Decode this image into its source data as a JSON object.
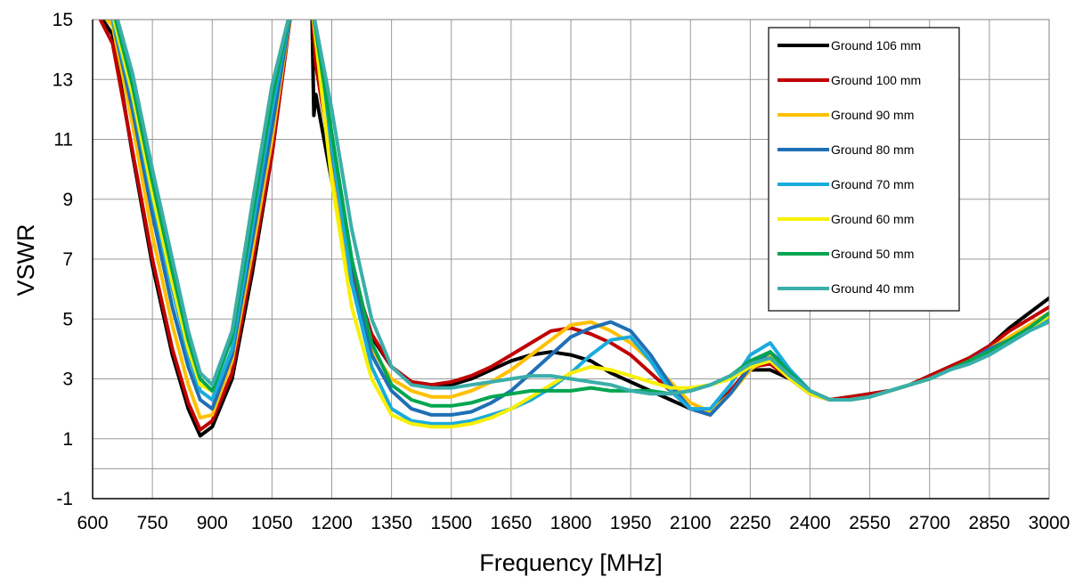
{
  "chart_data": {
    "type": "line",
    "xlabel": "Frequency [MHz]",
    "ylabel": "VSWR",
    "xlim": [
      600,
      3000
    ],
    "ylim": [
      -1,
      15
    ],
    "xticks": [
      600,
      750,
      900,
      1050,
      1200,
      1350,
      1500,
      1650,
      1800,
      1950,
      2100,
      2250,
      2400,
      2550,
      2700,
      2850,
      3000
    ],
    "yticks": [
      -1,
      1,
      3,
      5,
      7,
      9,
      11,
      13,
      15
    ],
    "grid": true,
    "legend_position": "top-right",
    "series": [
      {
        "name": "Ground 106 mm",
        "color": "#000000",
        "x": [
          600,
          650,
          700,
          750,
          800,
          840,
          870,
          900,
          950,
          1000,
          1050,
          1100,
          1150,
          1155,
          1160,
          1200,
          1250,
          1300,
          1350,
          1400,
          1450,
          1500,
          1550,
          1600,
          1650,
          1700,
          1750,
          1800,
          1850,
          1900,
          1950,
          2000,
          2050,
          2100,
          2150,
          2200,
          2250,
          2300,
          2350,
          2400,
          2450,
          2500,
          2550,
          2600,
          2650,
          2700,
          2750,
          2800,
          2850,
          2900,
          2950,
          3000
        ],
        "y": [
          15.5,
          14.5,
          10.5,
          6.8,
          3.8,
          2.0,
          1.1,
          1.4,
          3.0,
          6.5,
          10.5,
          15.5,
          15.5,
          11.8,
          12.5,
          9.6,
          6.2,
          4.4,
          3.4,
          2.9,
          2.8,
          2.8,
          3.0,
          3.3,
          3.6,
          3.8,
          3.9,
          3.8,
          3.6,
          3.2,
          2.9,
          2.6,
          2.3,
          2.0,
          1.9,
          2.6,
          3.3,
          3.3,
          3.0,
          2.5,
          2.3,
          2.4,
          2.5,
          2.6,
          2.8,
          3.1,
          3.4,
          3.7,
          4.1,
          4.7,
          5.2,
          5.7
        ]
      },
      {
        "name": "Ground 100 mm",
        "color": "#c00000",
        "x": [
          600,
          650,
          700,
          750,
          800,
          840,
          870,
          900,
          950,
          1000,
          1050,
          1100,
          1150,
          1160,
          1200,
          1250,
          1300,
          1350,
          1400,
          1450,
          1500,
          1550,
          1600,
          1650,
          1700,
          1750,
          1800,
          1850,
          1900,
          1950,
          2000,
          2050,
          2100,
          2150,
          2200,
          2250,
          2300,
          2350,
          2400,
          2450,
          2500,
          2550,
          2600,
          2650,
          2700,
          2750,
          2800,
          2850,
          2900,
          2950,
          3000
        ],
        "y": [
          15.5,
          14.2,
          10.6,
          7.0,
          4.0,
          2.2,
          1.3,
          1.6,
          3.2,
          6.8,
          10.5,
          15.5,
          15.5,
          13.5,
          10.2,
          6.6,
          4.5,
          3.4,
          2.9,
          2.8,
          2.9,
          3.1,
          3.4,
          3.8,
          4.2,
          4.6,
          4.7,
          4.5,
          4.2,
          3.8,
          3.2,
          2.6,
          2.0,
          1.8,
          2.6,
          3.4,
          3.5,
          3.0,
          2.5,
          2.3,
          2.4,
          2.5,
          2.6,
          2.8,
          3.1,
          3.4,
          3.7,
          4.1,
          4.6,
          5.0,
          5.4
        ]
      },
      {
        "name": "Ground 90 mm",
        "color": "#ffc000",
        "x": [
          600,
          650,
          700,
          750,
          800,
          840,
          870,
          900,
          950,
          1000,
          1050,
          1100,
          1150,
          1200,
          1250,
          1300,
          1350,
          1400,
          1450,
          1500,
          1550,
          1600,
          1650,
          1700,
          1750,
          1800,
          1850,
          1900,
          1950,
          2000,
          2050,
          2100,
          2150,
          2200,
          2250,
          2300,
          2350,
          2400,
          2450,
          2500,
          2550,
          2600,
          2650,
          2700,
          2750,
          2800,
          2850,
          2900,
          2950,
          3000
        ],
        "y": [
          15.5,
          14.8,
          11.5,
          7.8,
          4.8,
          2.8,
          1.7,
          1.8,
          3.6,
          7.2,
          11.0,
          15.5,
          15.5,
          10.0,
          6.2,
          4.0,
          3.0,
          2.6,
          2.4,
          2.4,
          2.6,
          2.9,
          3.3,
          3.8,
          4.3,
          4.8,
          4.9,
          4.6,
          4.2,
          3.6,
          2.9,
          2.2,
          1.9,
          2.5,
          3.3,
          3.8,
          3.2,
          2.6,
          2.3,
          2.3,
          2.4,
          2.6,
          2.8,
          3.0,
          3.3,
          3.6,
          4.0,
          4.4,
          4.8,
          5.2
        ]
      },
      {
        "name": "Ground 80 mm",
        "color": "#1f6fb5",
        "x": [
          600,
          650,
          700,
          750,
          800,
          840,
          870,
          900,
          950,
          1000,
          1050,
          1100,
          1150,
          1200,
          1250,
          1300,
          1350,
          1400,
          1450,
          1500,
          1550,
          1600,
          1650,
          1700,
          1750,
          1800,
          1850,
          1900,
          1950,
          2000,
          2050,
          2100,
          2150,
          2200,
          2250,
          2300,
          2350,
          2400,
          2450,
          2500,
          2550,
          2600,
          2650,
          2700,
          2750,
          2800,
          2850,
          2900,
          2950,
          3000
        ],
        "y": [
          15.5,
          15.0,
          12.0,
          8.5,
          5.4,
          3.4,
          2.3,
          2.0,
          3.8,
          7.6,
          11.4,
          15.5,
          15.5,
          10.6,
          6.4,
          3.8,
          2.6,
          2.0,
          1.8,
          1.8,
          1.9,
          2.2,
          2.6,
          3.2,
          3.8,
          4.4,
          4.7,
          4.9,
          4.6,
          3.8,
          2.8,
          2.0,
          1.8,
          2.5,
          3.4,
          3.9,
          3.3,
          2.6,
          2.3,
          2.3,
          2.4,
          2.6,
          2.8,
          3.0,
          3.3,
          3.6,
          4.0,
          4.3,
          4.7,
          5.0
        ]
      },
      {
        "name": "Ground 70 mm",
        "color": "#1aabdc",
        "x": [
          600,
          650,
          700,
          750,
          800,
          840,
          870,
          900,
          950,
          1000,
          1050,
          1100,
          1150,
          1200,
          1250,
          1300,
          1350,
          1400,
          1450,
          1500,
          1550,
          1600,
          1650,
          1700,
          1750,
          1800,
          1850,
          1900,
          1950,
          2000,
          2050,
          2100,
          2150,
          2200,
          2250,
          2300,
          2350,
          2400,
          2450,
          2500,
          2550,
          2600,
          2650,
          2700,
          2750,
          2800,
          2850,
          2900,
          2950,
          3000
        ],
        "y": [
          15.5,
          15.0,
          12.4,
          9.0,
          6.0,
          3.8,
          2.6,
          2.3,
          4.0,
          8.0,
          12.0,
          15.5,
          15.5,
          10.8,
          6.2,
          3.4,
          2.0,
          1.6,
          1.5,
          1.5,
          1.6,
          1.8,
          2.0,
          2.3,
          2.7,
          3.2,
          3.8,
          4.3,
          4.4,
          3.6,
          2.6,
          2.0,
          2.0,
          2.8,
          3.8,
          4.2,
          3.3,
          2.6,
          2.3,
          2.3,
          2.4,
          2.6,
          2.8,
          3.0,
          3.3,
          3.6,
          3.9,
          4.2,
          4.6,
          5.0
        ]
      },
      {
        "name": "Ground 60 mm",
        "color": "#f7f000",
        "x": [
          600,
          650,
          700,
          750,
          800,
          840,
          870,
          900,
          950,
          1000,
          1050,
          1100,
          1150,
          1200,
          1250,
          1300,
          1350,
          1400,
          1450,
          1500,
          1550,
          1600,
          1650,
          1700,
          1750,
          1800,
          1850,
          1900,
          1950,
          2000,
          2050,
          2100,
          2150,
          2200,
          2250,
          2300,
          2350,
          2400,
          2450,
          2500,
          2550,
          2600,
          2650,
          2700,
          2750,
          2800,
          2850,
          2900,
          2950,
          3000
        ],
        "y": [
          15.5,
          15.2,
          12.5,
          9.2,
          6.2,
          4.0,
          2.8,
          2.6,
          4.6,
          8.8,
          12.8,
          15.5,
          15.5,
          9.6,
          5.4,
          3.0,
          1.8,
          1.5,
          1.4,
          1.4,
          1.5,
          1.7,
          2.0,
          2.4,
          2.8,
          3.2,
          3.4,
          3.3,
          3.1,
          2.9,
          2.7,
          2.7,
          2.8,
          3.0,
          3.4,
          3.6,
          3.0,
          2.5,
          2.3,
          2.3,
          2.4,
          2.6,
          2.8,
          3.0,
          3.3,
          3.6,
          3.9,
          4.3,
          4.7,
          5.1
        ]
      },
      {
        "name": "Ground 50 mm",
        "color": "#00a550",
        "x": [
          600,
          650,
          700,
          750,
          800,
          840,
          870,
          900,
          950,
          1000,
          1050,
          1100,
          1150,
          1200,
          1250,
          1300,
          1350,
          1400,
          1450,
          1500,
          1550,
          1600,
          1650,
          1700,
          1750,
          1800,
          1850,
          1900,
          1950,
          2000,
          2050,
          2100,
          2150,
          2200,
          2250,
          2300,
          2350,
          2400,
          2450,
          2500,
          2550,
          2600,
          2650,
          2700,
          2750,
          2800,
          2850,
          2900,
          2950,
          3000
        ],
        "y": [
          15.5,
          15.4,
          12.8,
          9.6,
          6.6,
          4.3,
          3.0,
          2.6,
          4.4,
          8.4,
          12.4,
          15.5,
          15.5,
          11.2,
          7.0,
          4.2,
          2.8,
          2.3,
          2.1,
          2.1,
          2.2,
          2.4,
          2.5,
          2.6,
          2.6,
          2.6,
          2.7,
          2.6,
          2.6,
          2.6,
          2.5,
          2.6,
          2.8,
          3.1,
          3.6,
          3.9,
          3.2,
          2.6,
          2.3,
          2.3,
          2.4,
          2.6,
          2.8,
          3.0,
          3.3,
          3.6,
          3.9,
          4.3,
          4.7,
          5.2
        ]
      },
      {
        "name": "Ground 40 mm",
        "color": "#3aaeaa",
        "x": [
          600,
          650,
          700,
          750,
          800,
          840,
          870,
          900,
          950,
          1000,
          1050,
          1100,
          1150,
          1200,
          1250,
          1300,
          1350,
          1400,
          1450,
          1500,
          1550,
          1600,
          1650,
          1700,
          1750,
          1800,
          1850,
          1900,
          1950,
          2000,
          2050,
          2100,
          2150,
          2200,
          2250,
          2300,
          2350,
          2400,
          2450,
          2500,
          2550,
          2600,
          2650,
          2700,
          2750,
          2800,
          2850,
          2900,
          2950,
          3000
        ],
        "y": [
          15.5,
          15.6,
          13.2,
          10.0,
          7.0,
          4.6,
          3.2,
          2.8,
          4.6,
          8.8,
          12.8,
          15.5,
          15.5,
          12.0,
          8.0,
          5.0,
          3.4,
          2.8,
          2.7,
          2.7,
          2.8,
          2.9,
          3.0,
          3.1,
          3.1,
          3.0,
          2.9,
          2.8,
          2.6,
          2.5,
          2.5,
          2.6,
          2.8,
          3.1,
          3.5,
          3.7,
          3.1,
          2.6,
          2.3,
          2.3,
          2.4,
          2.6,
          2.8,
          3.0,
          3.3,
          3.5,
          3.8,
          4.2,
          4.6,
          4.9
        ]
      }
    ]
  }
}
